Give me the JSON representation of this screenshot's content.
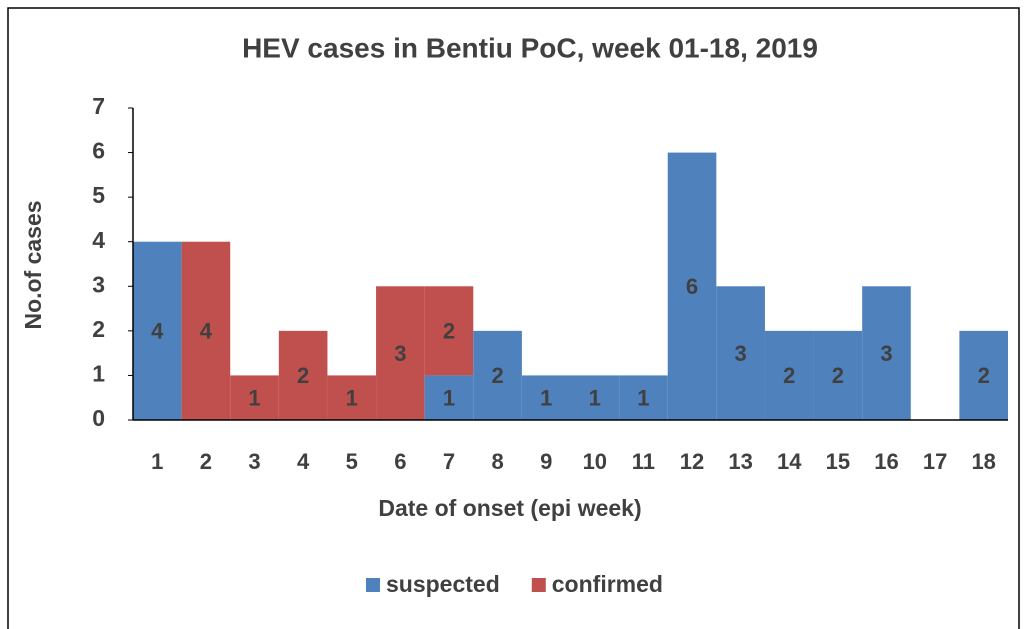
{
  "chart_data": {
    "type": "stacked_bar",
    "title": "HEV cases in Bentiu PoC, week 01-18, 2019",
    "x_label": "Date of onset (epi week)",
    "y_label": "No.of cases",
    "categories": [
      "1",
      "2",
      "3",
      "4",
      "5",
      "6",
      "7",
      "8",
      "9",
      "10",
      "11",
      "12",
      "13",
      "14",
      "15",
      "16",
      "17",
      "18"
    ],
    "series": [
      {
        "name": "suspected",
        "color": "#4f81bd",
        "values": [
          4,
          0,
          0,
          0,
          0,
          0,
          1,
          2,
          1,
          1,
          1,
          6,
          3,
          2,
          2,
          3,
          0,
          2
        ]
      },
      {
        "name": "confirmed",
        "color": "#c0504d",
        "values": [
          0,
          4,
          1,
          2,
          1,
          3,
          2,
          0,
          0,
          0,
          0,
          0,
          0,
          0,
          0,
          0,
          0,
          0
        ]
      }
    ],
    "ylim": [
      0,
      7
    ],
    "yticks": [
      0,
      1,
      2,
      3,
      4,
      5,
      6,
      7
    ],
    "legend": "bottom"
  }
}
